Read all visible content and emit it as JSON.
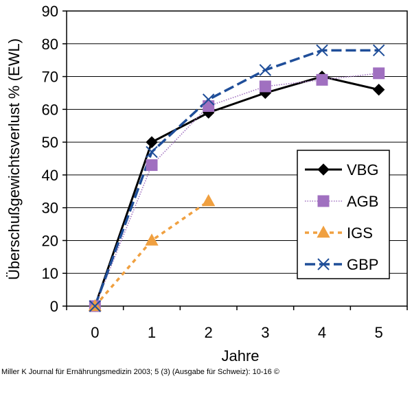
{
  "chart_data": {
    "type": "line",
    "title": "",
    "xlabel": "Jahre",
    "ylabel": "Überschußgewichtsverlust % (EWL)",
    "x_ticks": [
      "0",
      "1",
      "2",
      "3",
      "4",
      "5"
    ],
    "y_ticks": [
      "0",
      "10",
      "20",
      "30",
      "40",
      "50",
      "60",
      "70",
      "80",
      "90"
    ],
    "xlim": [
      -0.5,
      5.5
    ],
    "ylim": [
      0,
      90
    ],
    "grid": "horizontal",
    "legend_position": "bottom-right",
    "series": [
      {
        "name": "VBG",
        "color": "#000000",
        "line_style": "solid",
        "marker": "diamond",
        "x": [
          0,
          1,
          2,
          3,
          4,
          5
        ],
        "values": [
          0,
          50,
          59,
          65,
          70,
          66
        ]
      },
      {
        "name": "AGB",
        "color": "#a070c0",
        "line_style": "dotted",
        "marker": "square",
        "x": [
          0,
          1,
          2,
          3,
          4,
          5
        ],
        "values": [
          0,
          43,
          61,
          67,
          69,
          71
        ]
      },
      {
        "name": "IGS",
        "color": "#f0a040",
        "line_style": "dashed",
        "marker": "triangle",
        "x": [
          0,
          1,
          2
        ],
        "values": [
          0,
          20,
          32
        ]
      },
      {
        "name": "GBP",
        "color": "#1f4e99",
        "line_style": "long-dash",
        "marker": "x",
        "x": [
          0,
          1,
          2,
          3,
          4,
          5
        ],
        "values": [
          0,
          47,
          63,
          72,
          78,
          78
        ]
      }
    ]
  },
  "caption": "Miller K Journal für Ernährungsmedizin 2003; 5 (3) (Ausgabe für Schweiz): 10-16 ©"
}
